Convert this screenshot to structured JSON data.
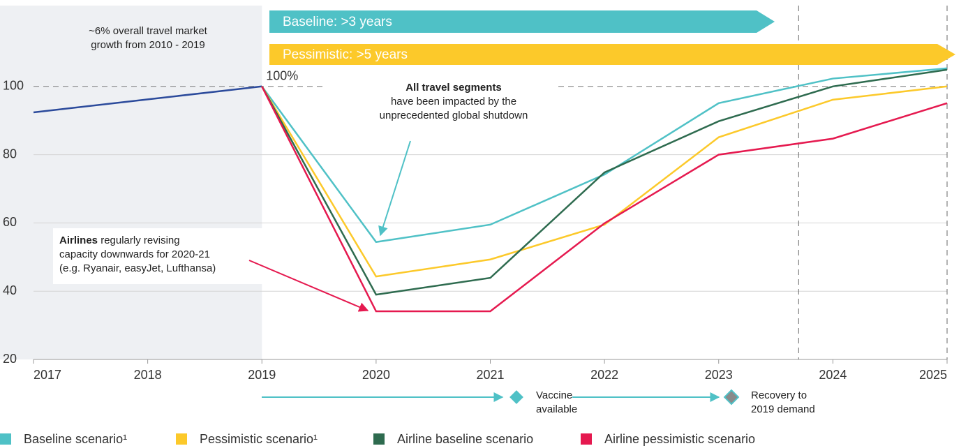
{
  "chart_data": {
    "type": "line",
    "x": [
      2017,
      2018,
      2019,
      2020,
      2021,
      2022,
      2023,
      2024,
      2025
    ],
    "xlim": [
      2017,
      2025
    ],
    "xticks": [
      2017,
      2018,
      2019,
      2020,
      2021,
      2022,
      2023,
      2024,
      2025
    ],
    "ylim": [
      20,
      120
    ],
    "yticks": [
      20,
      40,
      60,
      80,
      100
    ],
    "grid": true,
    "reference_line": 100,
    "reference_label": "100%",
    "shaded_xlim": [
      2017,
      2019
    ],
    "vlines": [
      2023.7,
      2025
    ],
    "series": [
      {
        "color": "#2b4a9b",
        "values": [
          92.4,
          96.2,
          100,
          null,
          null,
          null,
          null,
          null,
          null
        ]
      },
      {
        "name": "Baseline scenario¹",
        "color": "#4fc1c6",
        "values": [
          null,
          null,
          100,
          54.4,
          59.5,
          74.2,
          95.1,
          102.3,
          105.3
        ]
      },
      {
        "name": "Pessimistic scenario¹",
        "color": "#fcc92a",
        "values": [
          null,
          null,
          100,
          44.3,
          49.3,
          59.5,
          85.1,
          96.1,
          100
        ]
      },
      {
        "name": "Airline baseline scenario",
        "color": "#2e6b4f",
        "values": [
          null,
          null,
          100,
          39.0,
          43.9,
          74.8,
          89.8,
          100,
          104.9
        ]
      },
      {
        "name": "Airline pessimistic scenario",
        "color": "#e5194f",
        "values": [
          null,
          null,
          100,
          34.1,
          34.1,
          59.9,
          80,
          84.7,
          95.1
        ]
      }
    ],
    "legend": "bottom",
    "recovery_arrows": [
      {
        "label": "Baseline: >3 years",
        "color": "#4fc1c6"
      },
      {
        "label": "Pessimistic: >5 years",
        "color": "#fcc92a"
      }
    ],
    "annotations": [
      {
        "lines": [
          "~6% overall travel market",
          "growth from 2010 - 2019"
        ]
      },
      {
        "bold": "All travel segments",
        "lines": [
          "have been impacted by the",
          "unprecedented global shutdown"
        ]
      },
      {
        "bold": "Airlines",
        "lines": [
          "regularly revising",
          "capacity downwards for 2020-21",
          "(e.g. Ryanair, easyJet, Lufthansa)"
        ]
      }
    ],
    "milestones": [
      {
        "lines": [
          "Vaccine",
          "available"
        ]
      },
      {
        "lines": [
          "Recovery to",
          "2019 demand"
        ]
      }
    ]
  }
}
